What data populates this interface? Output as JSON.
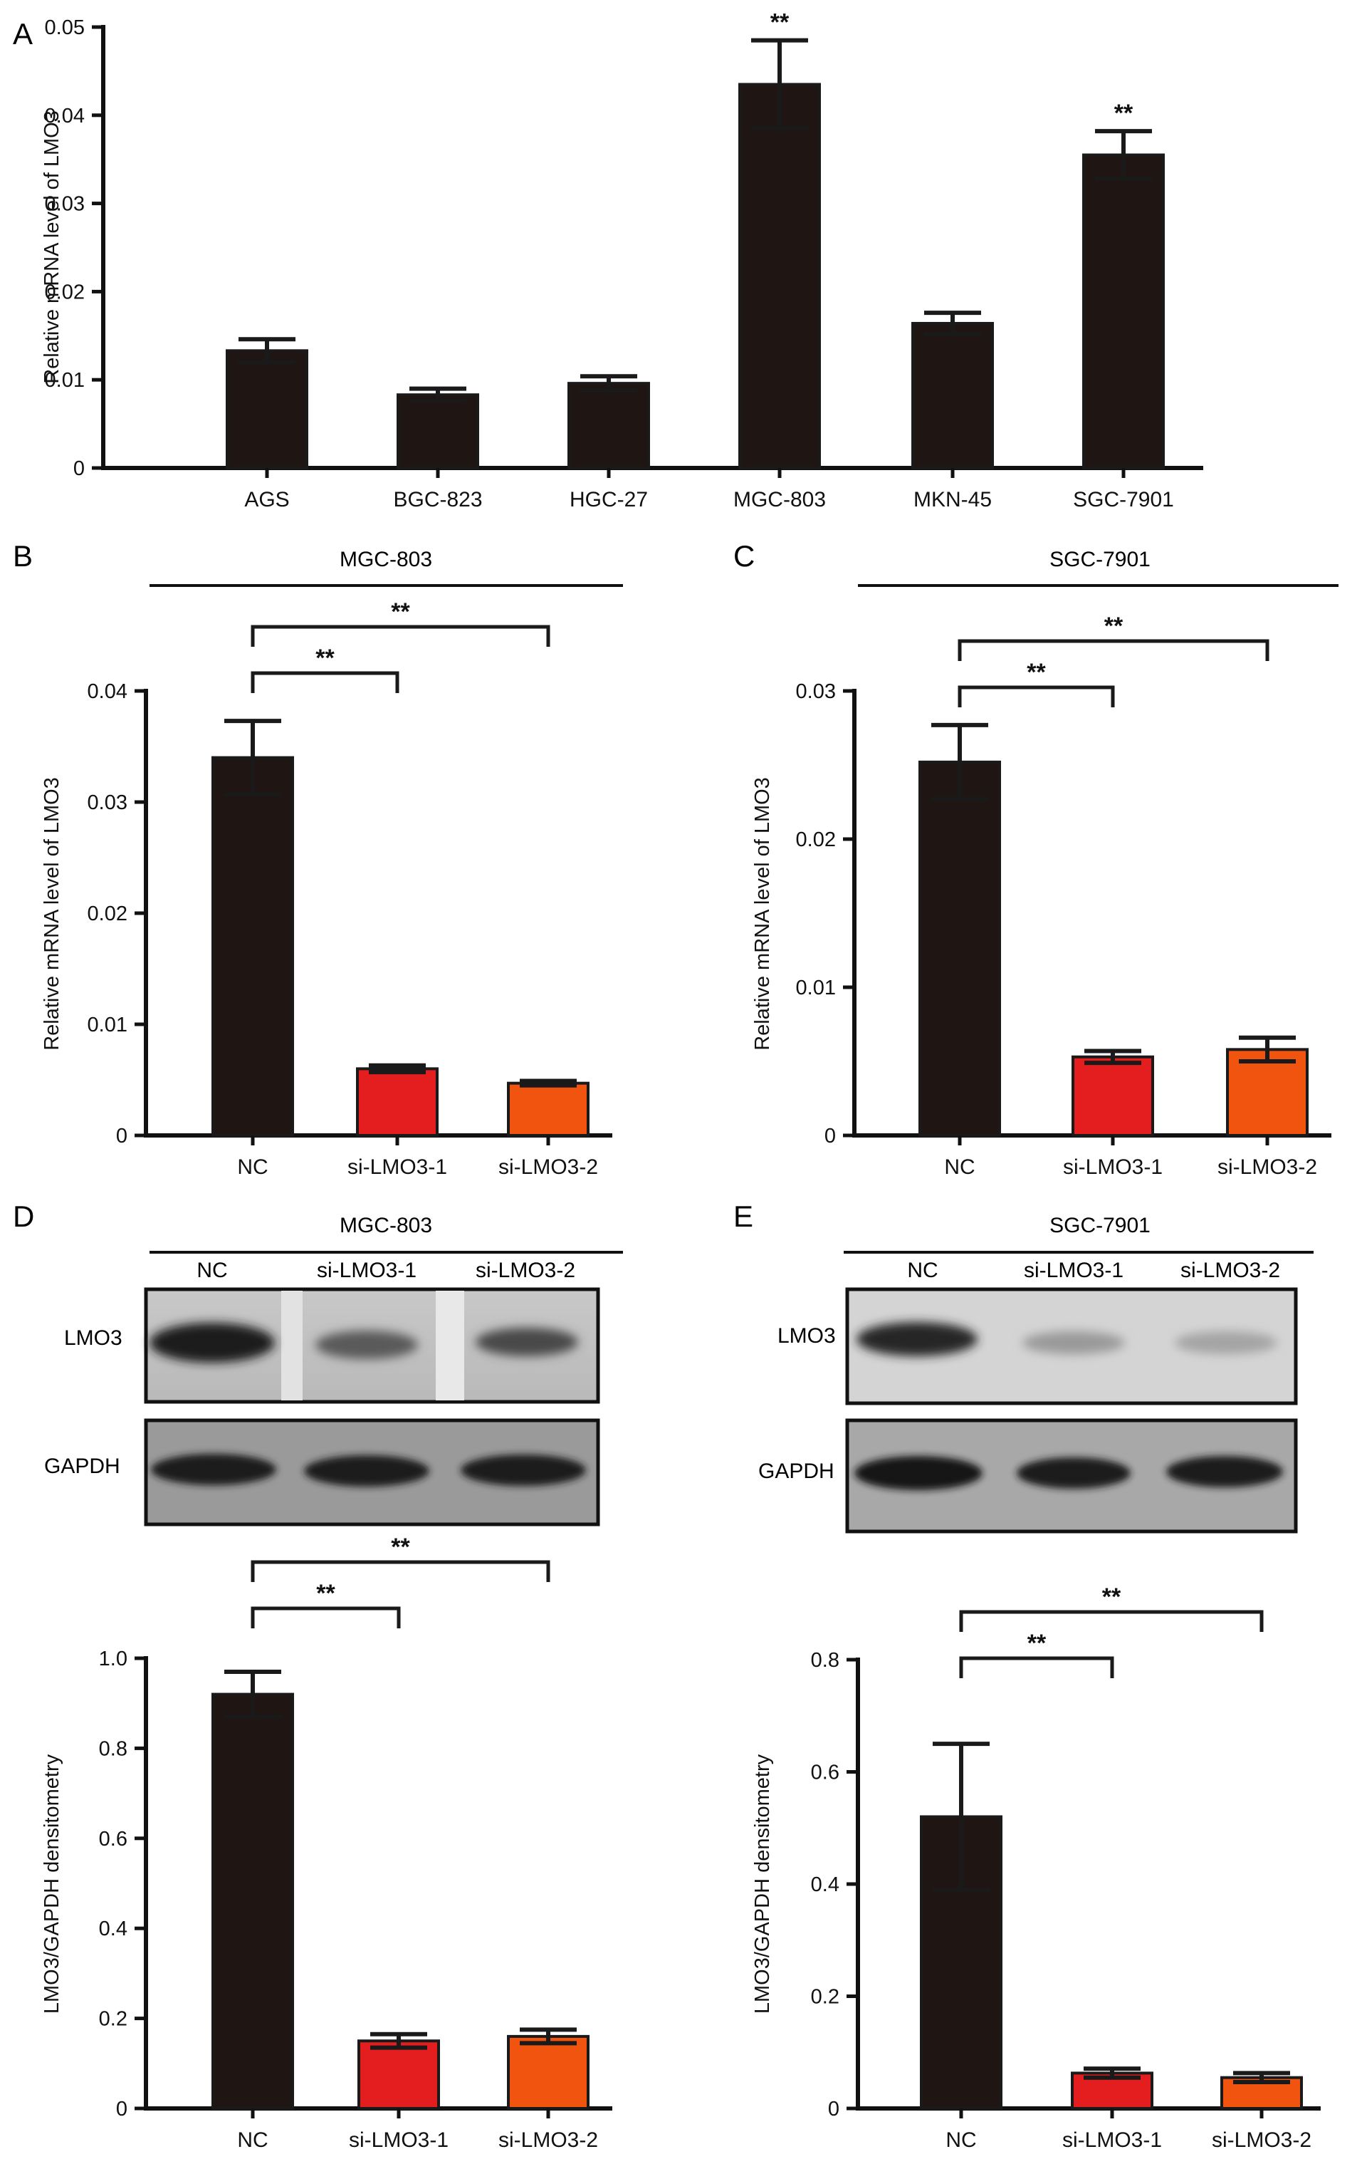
{
  "colors": {
    "black_bar": "#1f1513",
    "red_bar": "#e41e1e",
    "orange_bar": "#f0540e",
    "axis": "#111111"
  },
  "panels": {
    "A": {
      "label": "A"
    },
    "B": {
      "label": "B",
      "title": "MGC-803"
    },
    "C": {
      "label": "C",
      "title": "SGC-7901"
    },
    "D": {
      "label": "D",
      "title": "MGC-803"
    },
    "E": {
      "label": "E",
      "title": "SGC-7901"
    }
  },
  "blots": {
    "D": {
      "lanes": [
        "NC",
        "si-LMO3-1",
        "si-LMO3-2"
      ],
      "rows": [
        "LMO3",
        "GAPDH"
      ]
    },
    "E": {
      "lanes": [
        "NC",
        "si-LMO3-1",
        "si-LMO3-2"
      ],
      "rows": [
        "LMO3",
        "GAPDH"
      ]
    }
  },
  "chart_data": [
    {
      "id": "A",
      "type": "bar",
      "ylabel": "Relative mRNA level of LMO3",
      "categories": [
        "AGS",
        "BGC-823",
        "HGC-27",
        "MGC-803",
        "MKN-45",
        "SGC-7901"
      ],
      "values": [
        0.0133,
        0.0083,
        0.0096,
        0.0435,
        0.0164,
        0.0355
      ],
      "errors": [
        0.0013,
        0.0007,
        0.0008,
        0.005,
        0.0012,
        0.0027
      ],
      "colors": [
        "#1f1513",
        "#1f1513",
        "#1f1513",
        "#1f1513",
        "#1f1513",
        "#1f1513"
      ],
      "sig": [
        "",
        "",
        "",
        "**",
        "",
        "**"
      ],
      "ylim": [
        0,
        0.05
      ],
      "yticks": [
        0,
        0.01,
        0.02,
        0.03,
        0.04,
        0.05
      ],
      "yticklabels": [
        "0",
        "0.01",
        "0.02",
        "0.03",
        "0.04",
        "0.05"
      ],
      "brackets": []
    },
    {
      "id": "B",
      "type": "bar",
      "ylabel": "Relative mRNA level of LMO3",
      "categories": [
        "NC",
        "si-LMO3-1",
        "si-LMO3-2"
      ],
      "values": [
        0.034,
        0.006,
        0.0047
      ],
      "errors": [
        0.0033,
        0.0003,
        0.0002
      ],
      "colors": [
        "#1f1513",
        "#e41e1e",
        "#f0540e"
      ],
      "ylim": [
        0,
        0.04
      ],
      "yticks": [
        0,
        0.01,
        0.02,
        0.03,
        0.04
      ],
      "yticklabels": [
        "0",
        "0.01",
        "0.02",
        "0.03",
        "0.04"
      ],
      "brackets": [
        {
          "from": 0,
          "to": 1,
          "label": "**"
        },
        {
          "from": 0,
          "to": 2,
          "label": "**"
        }
      ]
    },
    {
      "id": "C",
      "type": "bar",
      "ylabel": "Relative mRNA level of LMO3",
      "categories": [
        "NC",
        "si-LMO3-1",
        "si-LMO3-2"
      ],
      "values": [
        0.0252,
        0.0053,
        0.0058
      ],
      "errors": [
        0.0025,
        0.0004,
        0.0008
      ],
      "colors": [
        "#1f1513",
        "#e41e1e",
        "#f0540e"
      ],
      "ylim": [
        0,
        0.03
      ],
      "yticks": [
        0,
        0.01,
        0.02,
        0.03
      ],
      "yticklabels": [
        "0",
        "0.01",
        "0.02",
        "0.03"
      ],
      "brackets": [
        {
          "from": 0,
          "to": 1,
          "label": "**"
        },
        {
          "from": 0,
          "to": 2,
          "label": "**"
        }
      ]
    },
    {
      "id": "D",
      "type": "bar",
      "ylabel": "LMO3/GAPDH densitometry",
      "categories": [
        "NC",
        "si-LMO3-1",
        "si-LMO3-2"
      ],
      "values": [
        0.92,
        0.15,
        0.16
      ],
      "errors": [
        0.05,
        0.015,
        0.015
      ],
      "colors": [
        "#1f1513",
        "#e41e1e",
        "#f0540e"
      ],
      "ylim": [
        0,
        1.0
      ],
      "yticks": [
        0,
        0.2,
        0.4,
        0.6,
        0.8,
        1.0
      ],
      "yticklabels": [
        "0",
        "0.2",
        "0.4",
        "0.6",
        "0.8",
        "1.0"
      ],
      "brackets": [
        {
          "from": 0,
          "to": 1,
          "label": "**"
        },
        {
          "from": 0,
          "to": 2,
          "label": "**"
        }
      ]
    },
    {
      "id": "E",
      "type": "bar",
      "ylabel": "LMO3/GAPDH densitometry",
      "categories": [
        "NC",
        "si-LMO3-1",
        "si-LMO3-2"
      ],
      "values": [
        0.52,
        0.063,
        0.055
      ],
      "errors": [
        0.13,
        0.008,
        0.008
      ],
      "colors": [
        "#1f1513",
        "#e41e1e",
        "#f0540e"
      ],
      "ylim": [
        0,
        0.8
      ],
      "yticks": [
        0,
        0.2,
        0.4,
        0.6,
        0.8
      ],
      "yticklabels": [
        "0",
        "0.2",
        "0.4",
        "0.6",
        "0.8"
      ],
      "brackets": [
        {
          "from": 0,
          "to": 1,
          "label": "**"
        },
        {
          "from": 0,
          "to": 2,
          "label": "**"
        }
      ]
    }
  ]
}
